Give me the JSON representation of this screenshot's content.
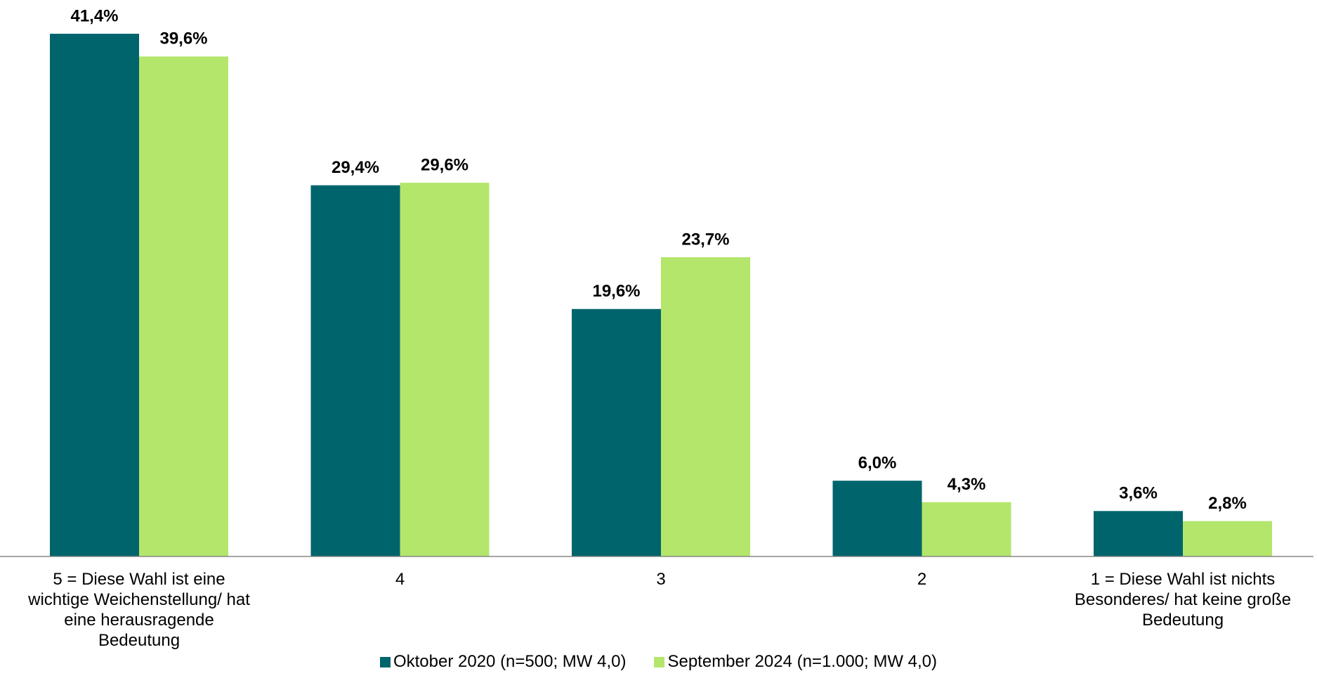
{
  "chart_data": {
    "type": "bar",
    "categories": [
      "5 = Diese Wahl ist eine wichtige Weichenstellung/ hat eine herausragende Bedeutung",
      "4",
      "3",
      "2",
      "1 = Diese Wahl ist nichts Besonderes/ hat keine große Bedeutung"
    ],
    "series": [
      {
        "name": "Oktober 2020 (n=500; MW 4,0)",
        "color": "#00646c",
        "values": [
          41.4,
          29.4,
          19.6,
          6.0,
          3.6
        ],
        "value_labels": [
          "41,4%",
          "29,4%",
          "19,6%",
          "6,0%",
          "3,6%"
        ]
      },
      {
        "name": "September 2024 (n=1.000; MW 4,0)",
        "color": "#b3e66b",
        "values": [
          39.6,
          29.6,
          23.7,
          4.3,
          2.8
        ],
        "value_labels": [
          "39,6%",
          "29,6%",
          "23,7%",
          "4,3%",
          "2,8%"
        ]
      }
    ],
    "legend": "bottom"
  }
}
